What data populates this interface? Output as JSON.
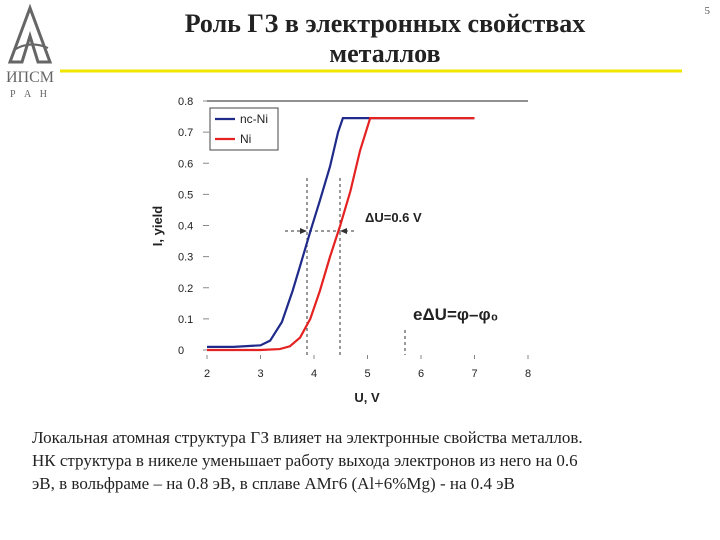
{
  "page_number": "5",
  "logo": {
    "name": "ИПСМ",
    "sub": "Р А Н"
  },
  "title_lines": [
    "Роль ГЗ в электронных свойствах",
    "металлов"
  ],
  "body_lines": [
    "Локальная атомная структура ГЗ влияет на электронные свойства металлов.",
    "НК структура в никеле уменьшает работу выхода электронов из него на 0.6",
    "эВ, в вольфраме – на 0.8 эВ, в сплаве АМг6 (Al+6%Mg) - на 0.4 эВ"
  ],
  "chart_data": {
    "type": "line",
    "x_label": "U, V",
    "y_label": "I, yield",
    "xlim": [
      2,
      8
    ],
    "ylim": [
      0,
      0.8
    ],
    "xticks": [
      2,
      3,
      4,
      5,
      6,
      7,
      8
    ],
    "yticks": [
      0,
      0.1,
      0.2,
      0.3,
      0.4,
      0.5,
      0.6,
      0.7,
      0.8
    ],
    "legend": "upper left",
    "annotations": [
      "ΔU=0.6 V",
      "eΔU=φ–φ₀"
    ],
    "series": [
      {
        "name": "nc-Ni",
        "color": "#1f2a8a",
        "x": [
          2,
          2.5,
          3,
          3.18,
          3.4,
          3.6,
          3.74,
          3.93,
          4.11,
          4.3,
          4.45,
          4.54,
          5,
          6,
          7
        ],
        "values": [
          0.01,
          0.01,
          0.015,
          0.03,
          0.09,
          0.19,
          0.27,
          0.38,
          0.48,
          0.59,
          0.7,
          0.745,
          0.745,
          0.745,
          0.745
        ]
      },
      {
        "name": "Ni",
        "color": "#e52222",
        "x": [
          2,
          3,
          3.36,
          3.55,
          3.74,
          3.93,
          4.11,
          4.3,
          4.49,
          4.68,
          4.86,
          5.05,
          6,
          7
        ],
        "values": [
          0,
          0,
          0.003,
          0.012,
          0.04,
          0.1,
          0.19,
          0.3,
          0.4,
          0.51,
          0.64,
          0.745,
          0.745,
          0.745
        ]
      }
    ]
  }
}
